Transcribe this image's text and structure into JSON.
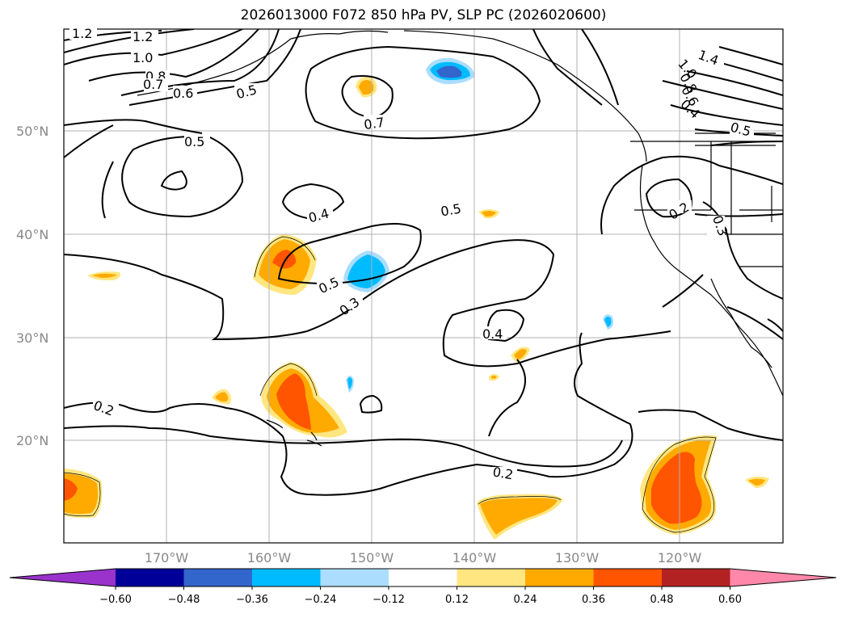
{
  "title": "2026013000 F072 850 hPa PV, SLP PC (2026020600)",
  "map": {
    "latitude_labels": [
      "50°N",
      "40°N",
      "30°N",
      "20°N"
    ],
    "longitude_labels": [
      "170°W",
      "160°W",
      "150°W",
      "140°W",
      "130°W",
      "120°W"
    ],
    "contour_labels": [
      "1.2",
      "1.2",
      "1.0",
      "0.8",
      "0.7",
      "0.6",
      "0.5",
      "0.7",
      "0.5",
      "0.4",
      "0.5",
      "0.5",
      "0.3",
      "0.4",
      "0.2",
      "0.2",
      "1.4",
      "1.0",
      "0.8",
      "0.6",
      "0.4",
      "0.5",
      "0.2",
      "0.3"
    ]
  },
  "colorbar": {
    "ticks": [
      "−0.60",
      "−0.48",
      "−0.36",
      "−0.24",
      "−0.12",
      "0.12",
      "0.24",
      "0.36",
      "0.48",
      "0.60"
    ],
    "colors": [
      "#9933cc",
      "#000099",
      "#3366cc",
      "#00bbff",
      "#aaddff",
      "#ffffff",
      "#ffe680",
      "#ffaa00",
      "#ff5500",
      "#b22222",
      "#ff88aa"
    ]
  }
}
